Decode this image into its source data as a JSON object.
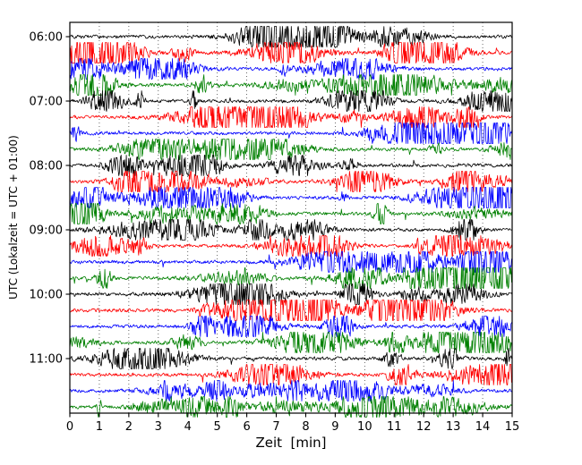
{
  "chart_data": {
    "type": "line",
    "subtype": "seismogram-dayplot",
    "title": "",
    "xlabel": "Zeit  [min]",
    "ylabel": "UTC (Lokalzeit = UTC + 01:00)",
    "xlim": [
      0,
      15
    ],
    "minutes_per_row": 15,
    "grid": {
      "vertical": true,
      "horizontal": false,
      "style": "dotted"
    },
    "x_tick_labels": [
      "0",
      "1",
      "2",
      "3",
      "4",
      "5",
      "6",
      "7",
      "8",
      "9",
      "10",
      "11",
      "12",
      "13",
      "14",
      "15"
    ],
    "y_ticks": [
      {
        "row": 0,
        "label": "06:00"
      },
      {
        "row": 4,
        "label": "07:00"
      },
      {
        "row": 8,
        "label": "08:00"
      },
      {
        "row": 12,
        "label": "09:00"
      },
      {
        "row": 16,
        "label": "10:00"
      },
      {
        "row": 20,
        "label": "11:00"
      }
    ],
    "color_cycle": [
      "#000000",
      "#ff0000",
      "#0000ff",
      "#008000"
    ],
    "signal_description": "ambient seismic noise with transient high-amplitude bursts",
    "rows": [
      {
        "start_time": "06:00",
        "color": "#000000"
      },
      {
        "start_time": "06:15",
        "color": "#ff0000"
      },
      {
        "start_time": "06:30",
        "color": "#0000ff"
      },
      {
        "start_time": "06:45",
        "color": "#008000"
      },
      {
        "start_time": "07:00",
        "color": "#000000"
      },
      {
        "start_time": "07:15",
        "color": "#ff0000"
      },
      {
        "start_time": "07:30",
        "color": "#0000ff"
      },
      {
        "start_time": "07:45",
        "color": "#008000"
      },
      {
        "start_time": "08:00",
        "color": "#000000"
      },
      {
        "start_time": "08:15",
        "color": "#ff0000"
      },
      {
        "start_time": "08:30",
        "color": "#0000ff"
      },
      {
        "start_time": "08:45",
        "color": "#008000"
      },
      {
        "start_time": "09:00",
        "color": "#000000"
      },
      {
        "start_time": "09:15",
        "color": "#ff0000"
      },
      {
        "start_time": "09:30",
        "color": "#0000ff"
      },
      {
        "start_time": "09:45",
        "color": "#008000"
      },
      {
        "start_time": "10:00",
        "color": "#000000"
      },
      {
        "start_time": "10:15",
        "color": "#ff0000"
      },
      {
        "start_time": "10:30",
        "color": "#0000ff"
      },
      {
        "start_time": "10:45",
        "color": "#008000"
      },
      {
        "start_time": "11:00",
        "color": "#000000"
      },
      {
        "start_time": "11:15",
        "color": "#ff0000"
      },
      {
        "start_time": "11:30",
        "color": "#0000ff"
      },
      {
        "start_time": "11:45",
        "color": "#008000"
      }
    ]
  }
}
